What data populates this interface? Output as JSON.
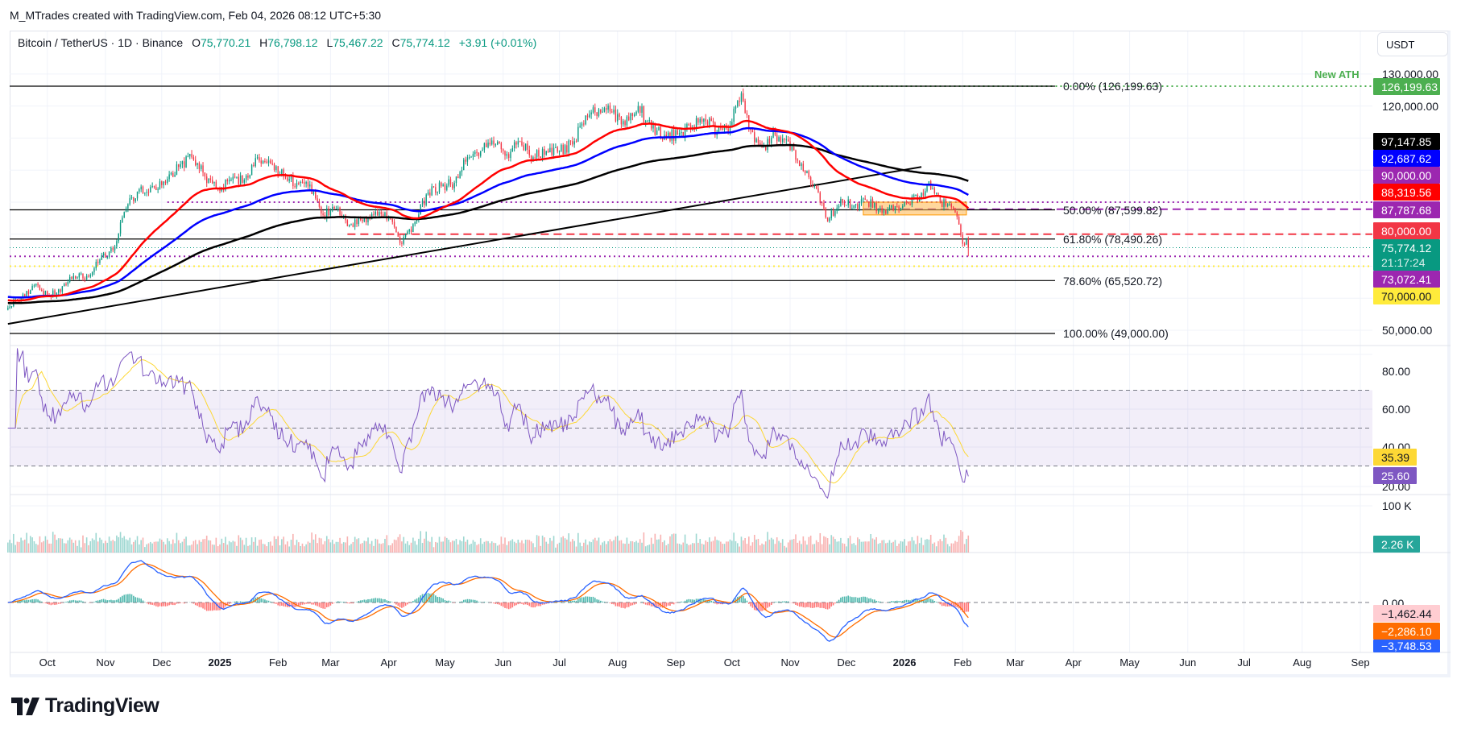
{
  "header": {
    "attribution": "M_MTrades created with TradingView.com, Feb 04, 2026 08:12 UTC+5:30"
  },
  "legend": {
    "symbol": "Bitcoin / TetherUS · 1D · Binance",
    "o_label": "O",
    "o": "75,770.21",
    "h_label": "H",
    "h": "76,798.12",
    "l_label": "L",
    "l": "75,467.22",
    "c_label": "C",
    "c": "75,774.12",
    "change": "+3.91 (+0.01%)"
  },
  "currency": "USDT",
  "annotations": {
    "new_ath": "New ATH"
  },
  "price_axis": {
    "ticks": [
      "130,000.00",
      "120,000.00",
      "50,000.00"
    ]
  },
  "price_badges": [
    {
      "text": "126,199.63",
      "color": "#4caf50"
    },
    {
      "text": "97,147.85",
      "color": "#000000"
    },
    {
      "text": "92,687.62",
      "color": "#0000ff"
    },
    {
      "text": "90,000.00",
      "color": "#9c27b0"
    },
    {
      "text": "88,319.56",
      "color": "#ff0000"
    },
    {
      "text": "87,787.68",
      "color": "#9c27b0"
    },
    {
      "text": "80,000.00",
      "color": "#f23645"
    },
    {
      "text": "75,774.12",
      "sub": "21:17:24",
      "color": "#089981"
    },
    {
      "text": "73,072.41",
      "color": "#9c27b0"
    },
    {
      "text": "70,000.00",
      "color": "#ffeb3b"
    }
  ],
  "rsi": {
    "ticks": [
      "80.00",
      "60.00",
      "40.00",
      "20.00"
    ],
    "badges": [
      {
        "text": "35.39",
        "color": "#fdd835"
      },
      {
        "text": "25.60",
        "color": "#7e57c2"
      }
    ]
  },
  "volume": {
    "ticks": [
      "100 K"
    ],
    "badge": {
      "text": "2.26 K",
      "color": "#26a69a"
    }
  },
  "macd": {
    "ticks": [
      "0.00"
    ],
    "badges": [
      {
        "text": "−1,462.44",
        "color": "#ffcdd2"
      },
      {
        "text": "−2,286.10",
        "color": "#ff6d00"
      },
      {
        "text": "−3,748.53",
        "color": "#2962ff"
      }
    ]
  },
  "x_axis": {
    "labels": [
      {
        "text": "Oct",
        "date": "2024-10-01"
      },
      {
        "text": "Nov",
        "date": "2024-11-01"
      },
      {
        "text": "Dec",
        "date": "2024-12-01"
      },
      {
        "text": "2025",
        "date": "2025-01-01",
        "bold": true
      },
      {
        "text": "Feb",
        "date": "2025-02-01"
      },
      {
        "text": "Mar",
        "date": "2025-03-01"
      },
      {
        "text": "Apr",
        "date": "2025-04-01"
      },
      {
        "text": "May",
        "date": "2025-05-01"
      },
      {
        "text": "Jun",
        "date": "2025-06-01"
      },
      {
        "text": "Jul",
        "date": "2025-07-01"
      },
      {
        "text": "Aug",
        "date": "2025-08-01"
      },
      {
        "text": "Sep",
        "date": "2025-09-01"
      },
      {
        "text": "Oct",
        "date": "2025-10-01"
      },
      {
        "text": "Nov",
        "date": "2025-11-01"
      },
      {
        "text": "Dec",
        "date": "2025-12-01"
      },
      {
        "text": "2026",
        "date": "2026-01-01",
        "bold": true
      },
      {
        "text": "Feb",
        "date": "2026-02-01"
      },
      {
        "text": "Mar",
        "date": "2026-03-01"
      },
      {
        "text": "Apr",
        "date": "2026-04-01"
      },
      {
        "text": "May",
        "date": "2026-05-01"
      },
      {
        "text": "Jun",
        "date": "2026-06-01"
      },
      {
        "text": "Jul",
        "date": "2026-07-01"
      },
      {
        "text": "Aug",
        "date": "2026-08-01"
      },
      {
        "text": "Sep",
        "date": "2026-09-01"
      }
    ]
  },
  "logo": "TradingView",
  "colors": {
    "up": "#089981",
    "down": "#f23645",
    "ema_fast": "#ff0000",
    "ema_mid": "#0000ff",
    "ema_slow": "#000000",
    "rsi": "#7e57c2",
    "rsi_ma": "#fdd835",
    "macd": "#2962ff",
    "signal": "#ff6d00"
  },
  "chart_data": {
    "type": "candlestick",
    "interval": "1D",
    "y_range": [
      45000,
      135000
    ],
    "grid": true,
    "closes_approx": [
      [
        "2024-09-10",
        57000
      ],
      [
        "2024-09-17",
        60000
      ],
      [
        "2024-09-24",
        64000
      ],
      [
        "2024-10-01",
        61000
      ],
      [
        "2024-10-08",
        62000
      ],
      [
        "2024-10-15",
        67000
      ],
      [
        "2024-10-22",
        67000
      ],
      [
        "2024-10-29",
        72000
      ],
      [
        "2024-11-05",
        75000
      ],
      [
        "2024-11-12",
        88000
      ],
      [
        "2024-11-19",
        94000
      ],
      [
        "2024-11-26",
        95000
      ],
      [
        "2024-12-03",
        96000
      ],
      [
        "2024-12-10",
        101000
      ],
      [
        "2024-12-17",
        104000
      ],
      [
        "2024-12-24",
        98000
      ],
      [
        "2024-12-31",
        94000
      ],
      [
        "2025-01-07",
        97000
      ],
      [
        "2025-01-14",
        97000
      ],
      [
        "2025-01-21",
        104000
      ],
      [
        "2025-01-28",
        102000
      ],
      [
        "2025-02-04",
        98000
      ],
      [
        "2025-02-11",
        96000
      ],
      [
        "2025-02-18",
        95500
      ],
      [
        "2025-02-25",
        86000
      ],
      [
        "2025-03-04",
        88000
      ],
      [
        "2025-03-11",
        83000
      ],
      [
        "2025-03-18",
        84000
      ],
      [
        "2025-03-25",
        87000
      ],
      [
        "2025-04-01",
        85000
      ],
      [
        "2025-04-08",
        77000
      ],
      [
        "2025-04-15",
        84000
      ],
      [
        "2025-04-22",
        93000
      ],
      [
        "2025-04-29",
        95000
      ],
      [
        "2025-05-06",
        96000
      ],
      [
        "2025-05-13",
        104000
      ],
      [
        "2025-05-20",
        106000
      ],
      [
        "2025-05-27",
        108000
      ],
      [
        "2025-06-03",
        105000
      ],
      [
        "2025-06-10",
        109000
      ],
      [
        "2025-06-17",
        104000
      ],
      [
        "2025-06-24",
        106000
      ],
      [
        "2025-07-01",
        106000
      ],
      [
        "2025-07-08",
        108000
      ],
      [
        "2025-07-15",
        117000
      ],
      [
        "2025-07-22",
        119000
      ],
      [
        "2025-07-29",
        118000
      ],
      [
        "2025-08-05",
        114000
      ],
      [
        "2025-08-12",
        120000
      ],
      [
        "2025-08-19",
        113000
      ],
      [
        "2025-08-26",
        111000
      ],
      [
        "2025-09-02",
        111000
      ],
      [
        "2025-09-09",
        113000
      ],
      [
        "2025-09-16",
        116000
      ],
      [
        "2025-09-23",
        112000
      ],
      [
        "2025-09-30",
        114000
      ],
      [
        "2025-10-06",
        124000
      ],
      [
        "2025-10-10",
        113000
      ],
      [
        "2025-10-17",
        107000
      ],
      [
        "2025-10-24",
        111000
      ],
      [
        "2025-10-31",
        109000
      ],
      [
        "2025-11-07",
        102000
      ],
      [
        "2025-11-14",
        95000
      ],
      [
        "2025-11-21",
        84000
      ],
      [
        "2025-11-28",
        91000
      ],
      [
        "2025-12-05",
        89000
      ],
      [
        "2025-12-12",
        90000
      ],
      [
        "2025-12-19",
        88000
      ],
      [
        "2025-12-26",
        87500
      ],
      [
        "2026-01-02",
        90000
      ],
      [
        "2026-01-09",
        91000
      ],
      [
        "2026-01-14",
        96500
      ],
      [
        "2026-01-20",
        90000
      ],
      [
        "2026-01-27",
        88000
      ],
      [
        "2026-01-30",
        83000
      ],
      [
        "2026-02-01",
        77000
      ],
      [
        "2026-02-03",
        78500
      ],
      [
        "2026-02-04",
        75774.12
      ]
    ],
    "last_candle": {
      "open": 75770.21,
      "high": 76798.12,
      "low": 75467.22,
      "close": 75774.12
    },
    "moving_averages": [
      {
        "color": "#ff0000",
        "last": 88319.56
      },
      {
        "color": "#0000ff",
        "last": 92687.62
      },
      {
        "color": "#000000",
        "last": 97147.85
      }
    ],
    "fib_levels": [
      {
        "label": "0.00% (126,199.63)",
        "value": 126199.63
      },
      {
        "label": "50.00% (87,599.82)",
        "value": 87599.82
      },
      {
        "label": "61.80% (78,490.26)",
        "value": 78490.26
      },
      {
        "label": "78.60% (65,520.72)",
        "value": 65520.72
      },
      {
        "label": "100.00% (49,000.00)",
        "value": 49000
      }
    ],
    "horizontal_levels": [
      {
        "value": 126199.63,
        "color": "#4caf50",
        "style": "dotted",
        "from": "2025-10-06"
      },
      {
        "value": 90000,
        "color": "#9c27b0",
        "style": "dotted",
        "from": "2024-12-04"
      },
      {
        "value": 87787.68,
        "color": "#9c27b0",
        "style": "dashed",
        "from": "2025-12-10"
      },
      {
        "value": 80000,
        "color": "#f23645",
        "style": "dashed",
        "from": "2025-03-10"
      },
      {
        "value": 75774.12,
        "color": "#089981",
        "style": "dotted"
      },
      {
        "value": 73072.41,
        "color": "#9c27b0",
        "style": "dotted"
      },
      {
        "value": 70000,
        "color": "#ffeb3b",
        "style": "dotted"
      }
    ],
    "zone": {
      "from": "2025-12-10",
      "to": "2026-02-03",
      "top": 90000,
      "bottom": 86000,
      "color": "#ffb74d"
    },
    "trendline": {
      "start": [
        "2024-09-10",
        52000
      ],
      "end": [
        "2026-01-10",
        101000
      ]
    },
    "rsi": {
      "upper": 70,
      "middle": 50,
      "lower": 30,
      "last": 25.6,
      "ma_last": 35.39
    },
    "macd_last": {
      "histogram": -1462.44,
      "signal": -2286.1,
      "macd": -3748.53
    },
    "volume_last": "2.26 K"
  }
}
